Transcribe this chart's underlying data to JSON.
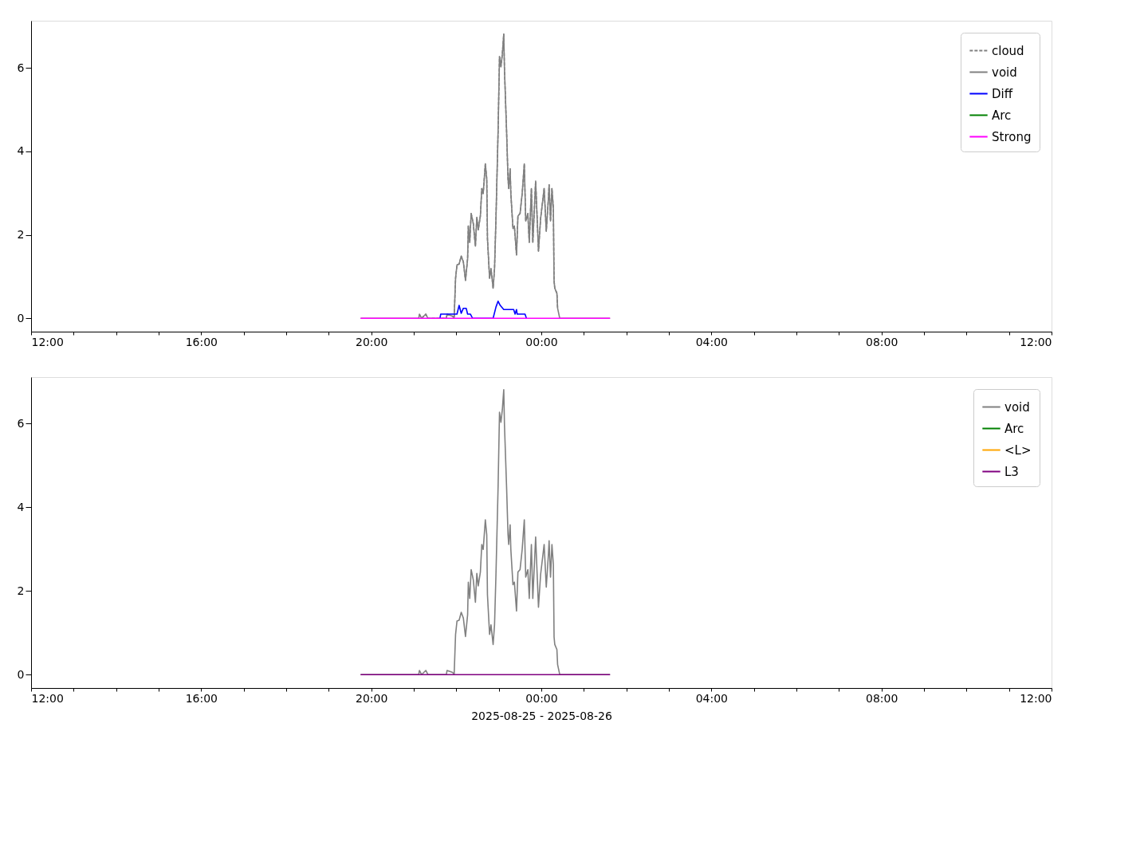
{
  "chart_data": [
    {
      "type": "line",
      "legend": "top right",
      "xlim": [
        "2025-08-25T12:00",
        "2025-08-26T12:00"
      ],
      "ylim": [
        -0.32,
        7.13
      ],
      "yticks": [
        0,
        2,
        4,
        6
      ],
      "xticks": [
        {
          "value": "2025-08-25T12:00",
          "label": "12:00"
        },
        {
          "value": "2025-08-25T13:00",
          "label": null
        },
        {
          "value": "2025-08-25T14:00",
          "label": null
        },
        {
          "value": "2025-08-25T15:00",
          "label": null
        },
        {
          "value": "2025-08-25T16:00",
          "label": "16:00"
        },
        {
          "value": "2025-08-25T17:00",
          "label": null
        },
        {
          "value": "2025-08-25T18:00",
          "label": null
        },
        {
          "value": "2025-08-25T19:00",
          "label": null
        },
        {
          "value": "2025-08-25T20:00",
          "label": "20:00"
        },
        {
          "value": "2025-08-25T21:00",
          "label": null
        },
        {
          "value": "2025-08-25T22:00",
          "label": null
        },
        {
          "value": "2025-08-25T23:00",
          "label": null
        },
        {
          "value": "2025-08-26T00:00",
          "label": "00:00"
        },
        {
          "value": "2025-08-26T01:00",
          "label": null
        },
        {
          "value": "2025-08-26T02:00",
          "label": null
        },
        {
          "value": "2025-08-26T03:00",
          "label": null
        },
        {
          "value": "2025-08-26T04:00",
          "label": "04:00"
        },
        {
          "value": "2025-08-26T05:00",
          "label": null
        },
        {
          "value": "2025-08-26T06:00",
          "label": null
        },
        {
          "value": "2025-08-26T07:00",
          "label": null
        },
        {
          "value": "2025-08-26T08:00",
          "label": "08:00"
        },
        {
          "value": "2025-08-26T09:00",
          "label": null
        },
        {
          "value": "2025-08-26T10:00",
          "label": null
        },
        {
          "value": "2025-08-26T11:00",
          "label": null
        },
        {
          "value": "2025-08-26T12:00",
          "label": "12:00"
        }
      ],
      "series": [
        {
          "name": "cloud",
          "color": "#808080",
          "line_style": "dashed",
          "x": [
            "2025-08-25T21:08",
            "2025-08-25T21:11",
            "2025-08-25T21:17",
            "2025-08-25T21:20",
            "2025-08-25T21:46",
            "2025-08-25T21:47",
            "2025-08-25T21:55",
            "2025-08-25T21:57",
            "2025-08-25T21:59",
            "2025-08-25T22:01",
            "2025-08-25T22:04",
            "2025-08-25T22:07",
            "2025-08-25T22:10",
            "2025-08-25T22:13",
            "2025-08-25T22:16",
            "2025-08-25T22:17",
            "2025-08-25T22:19",
            "2025-08-25T22:21",
            "2025-08-25T22:24",
            "2025-08-25T22:27",
            "2025-08-25T22:29",
            "2025-08-25T22:31",
            "2025-08-25T22:34",
            "2025-08-25T22:36",
            "2025-08-25T22:38",
            "2025-08-25T22:41",
            "2025-08-25T22:43",
            "2025-08-25T22:44",
            "2025-08-25T22:47",
            "2025-08-25T22:49",
            "2025-08-25T22:52",
            "2025-08-25T22:54",
            "2025-08-25T22:56",
            "2025-08-25T22:59",
            "2025-08-25T23:01",
            "2025-08-25T23:03",
            "2025-08-25T23:05",
            "2025-08-25T23:07",
            "2025-08-25T23:08",
            "2025-08-25T23:11",
            "2025-08-25T23:13",
            "2025-08-25T23:14",
            "2025-08-25T23:16",
            "2025-08-25T23:17",
            "2025-08-25T23:20",
            "2025-08-25T23:22",
            "2025-08-25T23:25",
            "2025-08-25T23:27",
            "2025-08-25T23:30",
            "2025-08-25T23:33",
            "2025-08-25T23:36",
            "2025-08-25T23:38",
            "2025-08-25T23:41",
            "2025-08-25T23:43",
            "2025-08-25T23:46",
            "2025-08-25T23:48",
            "2025-08-25T23:52",
            "2025-08-25T23:54",
            "2025-08-25T23:56",
            "2025-08-25T23:59",
            "2025-08-26T00:04",
            "2025-08-26T00:07",
            "2025-08-26T00:10",
            "2025-08-26T00:11",
            "2025-08-26T00:13",
            "2025-08-26T00:15",
            "2025-08-26T00:17",
            "2025-08-26T00:18",
            "2025-08-26T00:19",
            "2025-08-26T00:22",
            "2025-08-26T00:23"
          ],
          "values": [
            0.1,
            0,
            0.1,
            0,
            0,
            0.1,
            0.05,
            0,
            0.96,
            1.28,
            1.3,
            1.49,
            1.35,
            0.91,
            1.43,
            2.21,
            1.82,
            2.51,
            2.27,
            1.73,
            2.42,
            2.12,
            2.45,
            3.11,
            2.99,
            3.7,
            3.34,
            1.91,
            0.96,
            1.19,
            0.72,
            1.19,
            2.39,
            4.48,
            6.27,
            6.03,
            6.33,
            6.81,
            5.97,
            4.48,
            3.35,
            3.11,
            3.58,
            2.99,
            2.15,
            2.21,
            1.52,
            2.45,
            2.51,
            2.99,
            3.7,
            2.33,
            2.51,
            1.82,
            3.11,
            1.82,
            3.29,
            2.45,
            1.61,
            2.39,
            3.11,
            2.09,
            2.87,
            3.2,
            2.33,
            3.11,
            2.63,
            0.9,
            0.72,
            0.6,
            0.24
          ]
        },
        {
          "name": "void",
          "color": "#808080",
          "line_style": "solid",
          "x": [
            "2025-08-25T19:45",
            "2025-08-25T21:07",
            "2025-08-25T21:08",
            "2025-08-25T21:11",
            "2025-08-25T21:17",
            "2025-08-25T21:20",
            "2025-08-25T21:46",
            "2025-08-25T21:47",
            "2025-08-25T21:55",
            "2025-08-25T21:57",
            "2025-08-25T21:59",
            "2025-08-25T22:01",
            "2025-08-25T22:04",
            "2025-08-25T22:07",
            "2025-08-25T22:10",
            "2025-08-25T22:13",
            "2025-08-25T22:16",
            "2025-08-25T22:17",
            "2025-08-25T22:19",
            "2025-08-25T22:21",
            "2025-08-25T22:24",
            "2025-08-25T22:27",
            "2025-08-25T22:29",
            "2025-08-25T22:31",
            "2025-08-25T22:34",
            "2025-08-25T22:36",
            "2025-08-25T22:38",
            "2025-08-25T22:41",
            "2025-08-25T22:43",
            "2025-08-25T22:44",
            "2025-08-25T22:47",
            "2025-08-25T22:49",
            "2025-08-25T22:52",
            "2025-08-25T22:54",
            "2025-08-25T22:56",
            "2025-08-25T22:59",
            "2025-08-25T23:01",
            "2025-08-25T23:03",
            "2025-08-25T23:05",
            "2025-08-25T23:07",
            "2025-08-25T23:08",
            "2025-08-25T23:11",
            "2025-08-25T23:13",
            "2025-08-25T23:14",
            "2025-08-25T23:16",
            "2025-08-25T23:17",
            "2025-08-25T23:20",
            "2025-08-25T23:22",
            "2025-08-25T23:25",
            "2025-08-25T23:27",
            "2025-08-25T23:30",
            "2025-08-25T23:33",
            "2025-08-25T23:36",
            "2025-08-25T23:38",
            "2025-08-25T23:41",
            "2025-08-25T23:43",
            "2025-08-25T23:46",
            "2025-08-25T23:48",
            "2025-08-25T23:52",
            "2025-08-25T23:54",
            "2025-08-25T23:56",
            "2025-08-25T23:59",
            "2025-08-26T00:04",
            "2025-08-26T00:07",
            "2025-08-26T00:10",
            "2025-08-26T00:11",
            "2025-08-26T00:13",
            "2025-08-26T00:15",
            "2025-08-26T00:17",
            "2025-08-26T00:18",
            "2025-08-26T00:19",
            "2025-08-26T00:22",
            "2025-08-26T00:23",
            "2025-08-26T00:26",
            "2025-08-26T01:37"
          ],
          "values": [
            0,
            0,
            0.1,
            0,
            0.1,
            0,
            0,
            0.1,
            0.05,
            0,
            0.96,
            1.28,
            1.3,
            1.49,
            1.35,
            0.91,
            1.43,
            2.21,
            1.82,
            2.51,
            2.27,
            1.73,
            2.42,
            2.12,
            2.45,
            3.11,
            2.99,
            3.7,
            3.34,
            1.91,
            0.96,
            1.19,
            0.72,
            1.19,
            2.39,
            4.48,
            6.27,
            6.03,
            6.33,
            6.81,
            5.97,
            4.48,
            3.35,
            3.11,
            3.58,
            2.99,
            2.15,
            2.21,
            1.52,
            2.45,
            2.51,
            2.99,
            3.7,
            2.33,
            2.51,
            1.82,
            3.11,
            1.82,
            3.29,
            2.45,
            1.61,
            2.39,
            3.11,
            2.09,
            2.87,
            3.2,
            2.33,
            3.11,
            2.63,
            0.9,
            0.72,
            0.6,
            0.24,
            0,
            0
          ]
        },
        {
          "name": "Diff",
          "color": "#0000ff",
          "line_style": "solid",
          "x": [
            "2025-08-25T21:37",
            "2025-08-25T21:38",
            "2025-08-25T22:01",
            "2025-08-25T22:04",
            "2025-08-25T22:07",
            "2025-08-25T22:10",
            "2025-08-25T22:14",
            "2025-08-25T22:16",
            "2025-08-25T22:20",
            "2025-08-25T22:23",
            "2025-08-25T22:52",
            "2025-08-25T22:56",
            "2025-08-25T22:59",
            "2025-08-25T23:02",
            "2025-08-25T23:07",
            "2025-08-25T23:21",
            "2025-08-25T23:23",
            "2025-08-25T23:25",
            "2025-08-25T23:26",
            "2025-08-25T23:37",
            "2025-08-25T23:39"
          ],
          "values": [
            0,
            0.1,
            0.1,
            0.31,
            0.12,
            0.24,
            0.24,
            0.1,
            0.1,
            0,
            0,
            0.27,
            0.41,
            0.31,
            0.21,
            0.21,
            0.1,
            0.21,
            0.1,
            0.1,
            0
          ]
        },
        {
          "name": "Arc",
          "color": "#008000",
          "line_style": "solid"
        },
        {
          "name": "Strong",
          "color": "#ff00ff",
          "line_style": "solid",
          "x": [
            "2025-08-25T19:45",
            "2025-08-26T01:37"
          ],
          "values": [
            0,
            0
          ]
        }
      ]
    },
    {
      "type": "line",
      "legend": "top right",
      "xlabel": "2025-08-25 - 2025-08-26",
      "xlim": [
        "2025-08-25T12:00",
        "2025-08-26T12:00"
      ],
      "ylim": [
        -0.32,
        7.11
      ],
      "yticks": [
        0,
        2,
        4,
        6
      ],
      "xticks": [
        {
          "value": "2025-08-25T12:00",
          "label": "12:00"
        },
        {
          "value": "2025-08-25T13:00",
          "label": null
        },
        {
          "value": "2025-08-25T14:00",
          "label": null
        },
        {
          "value": "2025-08-25T15:00",
          "label": null
        },
        {
          "value": "2025-08-25T16:00",
          "label": "16:00"
        },
        {
          "value": "2025-08-25T17:00",
          "label": null
        },
        {
          "value": "2025-08-25T18:00",
          "label": null
        },
        {
          "value": "2025-08-25T19:00",
          "label": null
        },
        {
          "value": "2025-08-25T20:00",
          "label": "20:00"
        },
        {
          "value": "2025-08-25T21:00",
          "label": null
        },
        {
          "value": "2025-08-25T22:00",
          "label": null
        },
        {
          "value": "2025-08-25T23:00",
          "label": null
        },
        {
          "value": "2025-08-26T00:00",
          "label": "00:00"
        },
        {
          "value": "2025-08-26T01:00",
          "label": null
        },
        {
          "value": "2025-08-26T02:00",
          "label": null
        },
        {
          "value": "2025-08-26T03:00",
          "label": null
        },
        {
          "value": "2025-08-26T04:00",
          "label": "04:00"
        },
        {
          "value": "2025-08-26T05:00",
          "label": null
        },
        {
          "value": "2025-08-26T06:00",
          "label": null
        },
        {
          "value": "2025-08-26T07:00",
          "label": null
        },
        {
          "value": "2025-08-26T08:00",
          "label": "08:00"
        },
        {
          "value": "2025-08-26T09:00",
          "label": null
        },
        {
          "value": "2025-08-26T10:00",
          "label": null
        },
        {
          "value": "2025-08-26T11:00",
          "label": null
        },
        {
          "value": "2025-08-26T12:00",
          "label": "12:00"
        }
      ],
      "series": [
        {
          "name": "void",
          "color": "#808080",
          "line_style": "solid",
          "x": [
            "2025-08-25T19:45",
            "2025-08-25T21:07",
            "2025-08-25T21:08",
            "2025-08-25T21:11",
            "2025-08-25T21:17",
            "2025-08-25T21:20",
            "2025-08-25T21:46",
            "2025-08-25T21:47",
            "2025-08-25T21:55",
            "2025-08-25T21:57",
            "2025-08-25T21:59",
            "2025-08-25T22:01",
            "2025-08-25T22:04",
            "2025-08-25T22:07",
            "2025-08-25T22:10",
            "2025-08-25T22:13",
            "2025-08-25T22:16",
            "2025-08-25T22:17",
            "2025-08-25T22:19",
            "2025-08-25T22:21",
            "2025-08-25T22:24",
            "2025-08-25T22:27",
            "2025-08-25T22:29",
            "2025-08-25T22:31",
            "2025-08-25T22:34",
            "2025-08-25T22:36",
            "2025-08-25T22:38",
            "2025-08-25T22:41",
            "2025-08-25T22:43",
            "2025-08-25T22:44",
            "2025-08-25T22:47",
            "2025-08-25T22:49",
            "2025-08-25T22:52",
            "2025-08-25T22:54",
            "2025-08-25T22:56",
            "2025-08-25T22:59",
            "2025-08-25T23:01",
            "2025-08-25T23:03",
            "2025-08-25T23:05",
            "2025-08-25T23:07",
            "2025-08-25T23:08",
            "2025-08-25T23:11",
            "2025-08-25T23:13",
            "2025-08-25T23:14",
            "2025-08-25T23:16",
            "2025-08-25T23:17",
            "2025-08-25T23:20",
            "2025-08-25T23:22",
            "2025-08-25T23:25",
            "2025-08-25T23:27",
            "2025-08-25T23:30",
            "2025-08-25T23:33",
            "2025-08-25T23:36",
            "2025-08-25T23:38",
            "2025-08-25T23:41",
            "2025-08-25T23:43",
            "2025-08-25T23:46",
            "2025-08-25T23:48",
            "2025-08-25T23:52",
            "2025-08-25T23:54",
            "2025-08-25T23:56",
            "2025-08-25T23:59",
            "2025-08-26T00:04",
            "2025-08-26T00:07",
            "2025-08-26T00:10",
            "2025-08-26T00:11",
            "2025-08-26T00:13",
            "2025-08-26T00:15",
            "2025-08-26T00:17",
            "2025-08-26T00:18",
            "2025-08-26T00:19",
            "2025-08-26T00:22",
            "2025-08-26T00:23",
            "2025-08-26T00:26",
            "2025-08-26T01:37"
          ],
          "values": [
            0,
            0,
            0.1,
            0,
            0.1,
            0,
            0,
            0.1,
            0.05,
            0,
            0.96,
            1.28,
            1.3,
            1.49,
            1.35,
            0.91,
            1.43,
            2.21,
            1.82,
            2.51,
            2.27,
            1.73,
            2.42,
            2.12,
            2.45,
            3.11,
            2.99,
            3.7,
            3.34,
            1.91,
            0.96,
            1.19,
            0.72,
            1.19,
            2.39,
            4.48,
            6.27,
            6.03,
            6.33,
            6.81,
            5.97,
            4.48,
            3.35,
            3.11,
            3.58,
            2.99,
            2.15,
            2.21,
            1.52,
            2.45,
            2.51,
            2.99,
            3.7,
            2.33,
            2.51,
            1.82,
            3.11,
            1.82,
            3.29,
            2.45,
            1.61,
            2.39,
            3.11,
            2.09,
            2.87,
            3.2,
            2.33,
            3.11,
            2.63,
            0.9,
            0.72,
            0.6,
            0.24,
            0,
            0
          ]
        },
        {
          "name": "Arc",
          "color": "#008000",
          "line_style": "solid"
        },
        {
          "name": "<L>",
          "color": "#ffa500",
          "line_style": "solid"
        },
        {
          "name": "L3",
          "color": "#800080",
          "line_style": "solid",
          "x": [
            "2025-08-25T19:45",
            "2025-08-26T01:37"
          ],
          "values": [
            0,
            0
          ]
        }
      ]
    }
  ]
}
